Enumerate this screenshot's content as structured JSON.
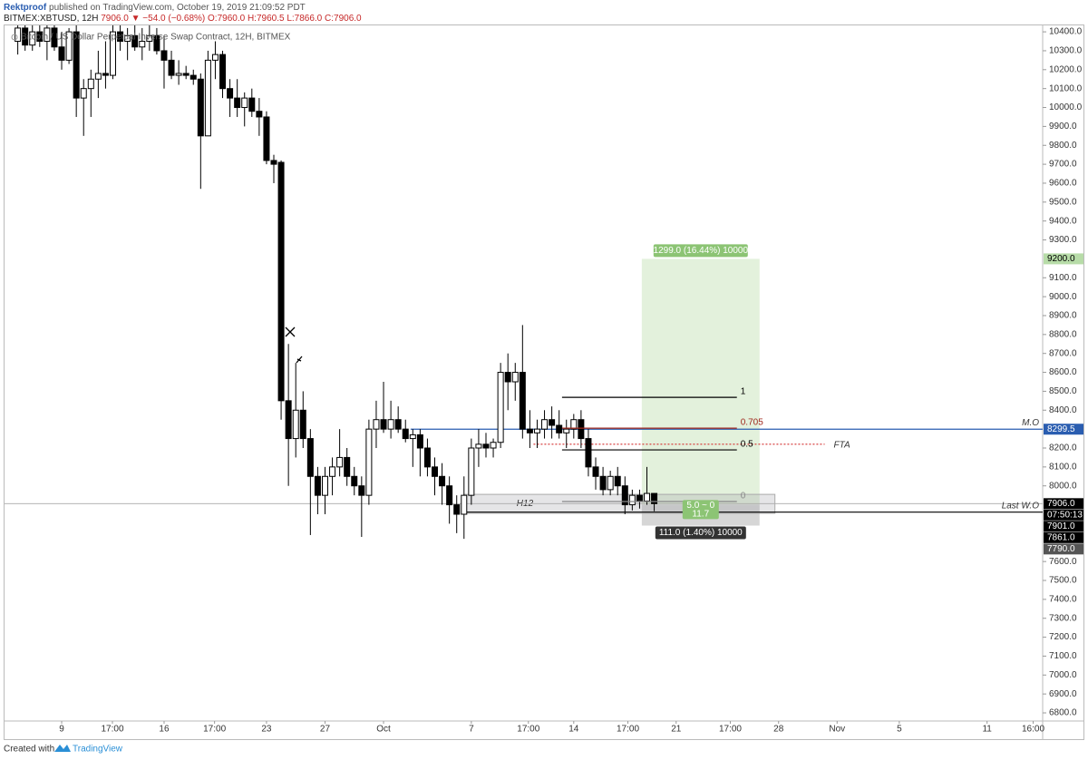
{
  "header": {
    "author": "Rektproof",
    "published": "published on TradingView.com, October 19, 2019 21:09:52 PDT",
    "symbol": "BITMEX:XBTUSD, 12H",
    "last": "7906.0",
    "change": "▼ −54.0 (−0.68%)",
    "ohlc": "O:7960.0 H:7960.5 L:7866.0 C:7906.0"
  },
  "footer": {
    "text": "Created with",
    "brand": "TradingView"
  },
  "chart_data": {
    "type": "candlestick",
    "title": "Bitcoin / US Dollar Perpetual Inverse Swap Contract, 12H, BITMEX",
    "open": [
      10350,
      10420,
      10330,
      10400,
      10350,
      10420,
      10320,
      10250,
      10400,
      10050,
      10100,
      10150,
      10180,
      10170,
      10400,
      10350,
      10380,
      10320,
      10350,
      10380,
      10300,
      10250,
      10170,
      10180,
      10170,
      10150,
      9850,
      10250,
      10280,
      10100,
      10050,
      10000,
      10050,
      9980,
      9950,
      9720,
      9710,
      8450,
      8250,
      8400,
      8250,
      8050,
      7950,
      8050,
      8100,
      8150,
      8050,
      8000,
      7950,
      8300,
      8350,
      8300,
      8350,
      8300,
      8250,
      8270,
      8200,
      8100,
      8050,
      8000,
      7900,
      7850,
      7950,
      8200,
      8220,
      8200,
      8230,
      8600,
      8550,
      8600,
      8300,
      8280,
      8300,
      8350,
      8320,
      8280,
      8300,
      8350,
      8250,
      8100,
      8050,
      7980,
      8050,
      8000,
      7900,
      7950,
      7920,
      7960
    ],
    "high": [
      10500,
      10480,
      10450,
      10500,
      10480,
      10480,
      10400,
      10420,
      10450,
      10150,
      10200,
      10300,
      10350,
      10450,
      10450,
      10420,
      10450,
      10420,
      10450,
      10420,
      10380,
      10300,
      10250,
      10220,
      10200,
      10180,
      10300,
      10350,
      10300,
      10150,
      10150,
      10080,
      10100,
      10050,
      9980,
      9750,
      9720,
      8750,
      8650,
      8500,
      8300,
      8100,
      8100,
      8150,
      8300,
      8200,
      8100,
      8050,
      8350,
      8450,
      8550,
      8450,
      8420,
      8350,
      8300,
      8300,
      8250,
      8150,
      8120,
      8050,
      7950,
      8050,
      8250,
      8300,
      8280,
      8250,
      8650,
      8700,
      8650,
      8850,
      8400,
      8350,
      8400,
      8420,
      8400,
      8350,
      8380,
      8400,
      8300,
      8150,
      8100,
      8080,
      8100,
      8050,
      7980,
      7980,
      8100,
      7960.5
    ],
    "low": [
      10280,
      10300,
      10300,
      10320,
      10250,
      10300,
      10200,
      10230,
      9950,
      9850,
      9950,
      10050,
      10100,
      10150,
      10300,
      10250,
      10300,
      10250,
      10300,
      10280,
      10100,
      10150,
      10120,
      10150,
      10120,
      9570,
      9850,
      10150,
      10050,
      9950,
      9950,
      9900,
      9950,
      9850,
      9700,
      9600,
      8350,
      8000,
      8150,
      8200,
      7740,
      7850,
      7850,
      7950,
      8050,
      8000,
      7950,
      7730,
      7900,
      8200,
      8280,
      8250,
      8280,
      8230,
      8100,
      8050,
      8050,
      7950,
      7900,
      7800,
      7750,
      7720,
      7900,
      8100,
      8150,
      8150,
      8200,
      8400,
      8450,
      8250,
      8200,
      8200,
      8250,
      8250,
      8250,
      8200,
      8250,
      8200,
      8050,
      7980,
      7950,
      7950,
      7950,
      7850,
      7870,
      7880,
      7900,
      7866
    ],
    "close": [
      10420,
      10330,
      10400,
      10350,
      10420,
      10320,
      10250,
      10400,
      10050,
      10100,
      10150,
      10180,
      10170,
      10400,
      10350,
      10380,
      10320,
      10350,
      10380,
      10300,
      10250,
      10170,
      10180,
      10170,
      10150,
      9850,
      10250,
      10280,
      10100,
      10050,
      10000,
      10050,
      9980,
      9950,
      9720,
      9700,
      8450,
      8250,
      8400,
      8250,
      8050,
      7950,
      8050,
      8100,
      8150,
      8050,
      8000,
      7950,
      8300,
      8350,
      8300,
      8350,
      8300,
      8250,
      8270,
      8200,
      8100,
      8050,
      8000,
      7900,
      7850,
      7950,
      8200,
      8220,
      8200,
      8230,
      8600,
      8550,
      8600,
      8300,
      8280,
      8300,
      8350,
      8320,
      8280,
      8300,
      8350,
      8250,
      8100,
      8050,
      7980,
      8050,
      8000,
      7900,
      7950,
      7920,
      7960,
      7906
    ],
    "up_color": "#ffffff",
    "down_color": "#000000",
    "border_color": "#000000",
    "xlim": [
      -2.43,
      140.1
    ],
    "xticks": [
      {
        "value": 6,
        "label": "9"
      },
      {
        "value": 12.94,
        "label": "17:00"
      },
      {
        "value": 20,
        "label": "16"
      },
      {
        "value": 26.9,
        "label": "17:00"
      },
      {
        "value": 34,
        "label": "23"
      },
      {
        "value": 42,
        "label": "27"
      },
      {
        "value": 50,
        "label": "Oct"
      },
      {
        "value": 62,
        "label": "7"
      },
      {
        "value": 69.8,
        "label": "17:00"
      },
      {
        "value": 76,
        "label": "14"
      },
      {
        "value": 83.4,
        "label": "17:00"
      },
      {
        "value": 90,
        "label": "21"
      },
      {
        "value": 97.4,
        "label": "17:00"
      },
      {
        "value": 104,
        "label": "28"
      },
      {
        "value": 112,
        "label": "Nov"
      },
      {
        "value": 120.5,
        "label": "5"
      },
      {
        "value": 132.5,
        "label": "11"
      },
      {
        "value": 138.8,
        "label": "16:00"
      }
    ],
    "ylim": [
      6757,
      10434
    ],
    "yticks": [
      {
        "value": 6800,
        "label": "6800.0"
      },
      {
        "value": 6900,
        "label": "6900.0"
      },
      {
        "value": 7000,
        "label": "7000.0"
      },
      {
        "value": 7100,
        "label": "7100.0"
      },
      {
        "value": 7200,
        "label": "7200.0"
      },
      {
        "value": 7300,
        "label": "7300.0"
      },
      {
        "value": 7400,
        "label": "7400.0"
      },
      {
        "value": 7500,
        "label": "7500.0"
      },
      {
        "value": 7600,
        "label": "7600.0"
      },
      {
        "value": 8000,
        "label": "8000.0"
      },
      {
        "value": 8100,
        "label": "8100.0"
      },
      {
        "value": 8200,
        "label": "8200.0"
      },
      {
        "value": 8400,
        "label": "8400.0"
      },
      {
        "value": 8500,
        "label": "8500.0"
      },
      {
        "value": 8600,
        "label": "8600.0"
      },
      {
        "value": 8700,
        "label": "8700.0"
      },
      {
        "value": 8800,
        "label": "8800.0"
      },
      {
        "value": 8900,
        "label": "8900.0"
      },
      {
        "value": 9000,
        "label": "9000.0"
      },
      {
        "value": 9100,
        "label": "9100.0"
      },
      {
        "value": 9300,
        "label": "9300.0"
      },
      {
        "value": 9400,
        "label": "9400.0"
      },
      {
        "value": 9500,
        "label": "9500.0"
      },
      {
        "value": 9600,
        "label": "9600.0"
      },
      {
        "value": 9700,
        "label": "9700.0"
      },
      {
        "value": 9800,
        "label": "9800.0"
      },
      {
        "value": 9900,
        "label": "9900.0"
      },
      {
        "value": 10000,
        "label": "10000.0"
      },
      {
        "value": 10100,
        "label": "10100.0"
      },
      {
        "value": 10200,
        "label": "10200.0"
      },
      {
        "value": 10300,
        "label": "10300.0"
      },
      {
        "value": 10400,
        "label": "10400.0"
      }
    ],
    "lines": [
      {
        "label": "M.O",
        "value": 8299.5,
        "from": 53.7,
        "color": "#2a5db0"
      },
      {
        "label": "Last W.O",
        "value": 7861,
        "from": 61,
        "color": "#000000"
      }
    ],
    "dotted": {
      "label": "FTA",
      "value": 8220,
      "from": 70.5,
      "to": 110.3,
      "color": "#d32f2f"
    },
    "fib": {
      "from": 74.4,
      "to": 98.3,
      "levels": [
        {
          "label": "1",
          "value": 8468,
          "color": "#000000"
        },
        {
          "label": "0.705",
          "value": 8305,
          "color": "#a0281e"
        },
        {
          "label": "0.5",
          "value": 8190,
          "color": "#000000"
        },
        {
          "label": "0",
          "value": 7917,
          "color": "#888888"
        }
      ]
    },
    "zone": {
      "label": "H12",
      "from": 61,
      "to": 103.5,
      "top": 7955,
      "bottom": 7855
    },
    "position": {
      "from": 85.3,
      "to": 101.4,
      "entry": 7901,
      "target": 9200,
      "stop": 7790,
      "target_label": "1299.0 (16.44%) 10000",
      "stop_label": "111.0 (1.40%) 10000",
      "center_labels": [
        "5.0 ~ 0",
        "11.7"
      ]
    },
    "price_labels": [
      {
        "value": 9200,
        "label": "9200.0",
        "color": "#b7dca8",
        "text_color": "#000000"
      },
      {
        "value": 8299.5,
        "label": "8299.5",
        "color": "#2a5db0",
        "text_color": "#ffffff"
      },
      {
        "value": 7906,
        "label": "7906.0",
        "color": "#000000",
        "text_color": "#ffffff",
        "countdown": "07:50:13"
      },
      {
        "value": 7901,
        "label": "7901.0",
        "color": "#000000",
        "text_color": "#ffffff"
      },
      {
        "value": 7861,
        "label": "7861.0",
        "color": "#000000",
        "text_color": "#ffffff"
      },
      {
        "value": 7790,
        "label": "7790.0",
        "color": "#555555",
        "text_color": "#ffffff"
      }
    ]
  }
}
